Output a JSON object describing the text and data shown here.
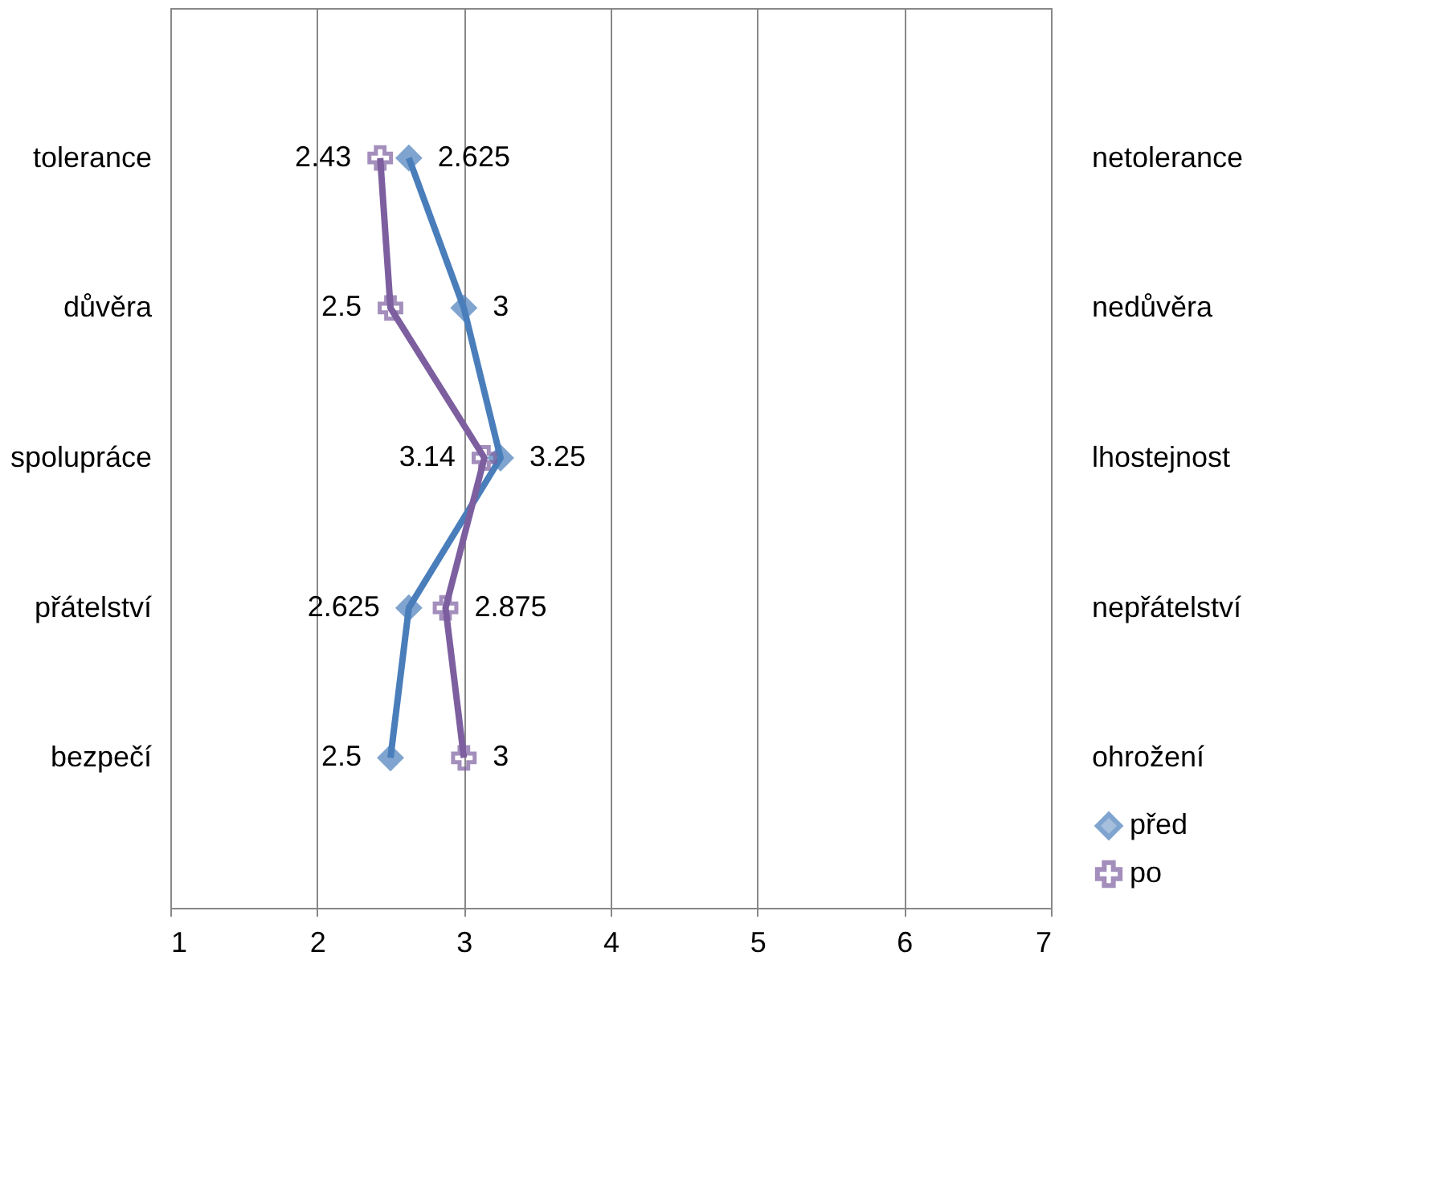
{
  "chart_data": {
    "type": "line",
    "orientation": "horizontal",
    "categories": [
      "tolerance",
      "důvěra",
      "spolupráce",
      "přátelství",
      "bezpečí"
    ],
    "y2_categories": [
      "netolerance",
      "nedůvěra",
      "lhostejnost",
      "nepřátelství",
      "ohrožení"
    ],
    "series": [
      {
        "name": "před",
        "color": "#4a7ebb",
        "marker": "diamond",
        "values": [
          2.625,
          3,
          3.25,
          2.625,
          2.5
        ]
      },
      {
        "name": "po",
        "color": "#7d5fa0",
        "marker": "cross",
        "values": [
          2.43,
          2.5,
          3.14,
          2.875,
          3
        ]
      }
    ],
    "xlim": [
      1,
      7
    ],
    "xticks": [
      1,
      2,
      3,
      4,
      5,
      6,
      7
    ],
    "grid": "x",
    "legend": "bottom right",
    "data_labels": true,
    "line_style": "solid"
  }
}
